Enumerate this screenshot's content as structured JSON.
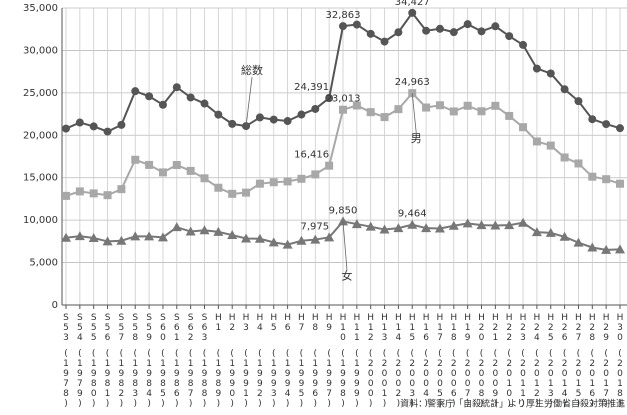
{
  "chart_data": {
    "type": "line",
    "categories": [
      "S53",
      "S54",
      "S55",
      "S56",
      "S57",
      "S58",
      "S59",
      "S60",
      "S61",
      "S62",
      "S63",
      "H1",
      "H2",
      "H3",
      "H4",
      "H5",
      "H6",
      "H7",
      "H8",
      "H9",
      "H10",
      "H11",
      "H12",
      "H13",
      "H14",
      "H15",
      "H16",
      "H17",
      "H18",
      "H19",
      "H20",
      "H21",
      "H22",
      "H23",
      "H24",
      "H25",
      "H26",
      "H27",
      "H28",
      "H29",
      "H30"
    ],
    "years": [
      "(1978)",
      "(1979)",
      "(1980)",
      "(1981)",
      "(1982)",
      "(1983)",
      "(1984)",
      "(1985)",
      "(1986)",
      "(1987)",
      "(1988)",
      "(1989)",
      "(1990)",
      "(1991)",
      "(1992)",
      "(1993)",
      "(1994)",
      "(1995)",
      "(1996)",
      "(1997)",
      "(1998)",
      "(1999)",
      "(2000)",
      "(2001)",
      "(2002)",
      "(2003)",
      "(2004)",
      "(2005)",
      "(2006)",
      "(2007)",
      "(2008)",
      "(2009)",
      "(2010)",
      "(2011)",
      "(2012)",
      "(2013)",
      "(2014)",
      "(2015)",
      "(2016)",
      "(2017)",
      "(2018)"
    ],
    "ylim": [
      0,
      35000
    ],
    "yticks": [
      0,
      {
        "value": 5000,
        "label": "5,000"
      },
      {
        "value": 10000,
        "label": "10,000"
      },
      {
        "value": 15000,
        "label": "15,000"
      },
      {
        "value": 20000,
        "label": "20,000"
      },
      {
        "value": 25000,
        "label": "25,000"
      },
      {
        "value": 30000,
        "label": "30,000"
      },
      {
        "value": 35000,
        "label": "35,000"
      }
    ],
    "grid": true,
    "series": [
      {
        "name": "総数",
        "color": "#555555",
        "marker": "circle",
        "values": [
          20788,
          21503,
          21048,
          20434,
          21228,
          25202,
          24596,
          23599,
          25667,
          24460,
          23742,
          22436,
          21346,
          21084,
          22104,
          21851,
          21679,
          22445,
          23104,
          24391,
          32863,
          33048,
          31957,
          31042,
          32143,
          34427,
          32325,
          32552,
          32155,
          33093,
          32249,
          32845,
          31690,
          30651,
          27858,
          27283,
          25427,
          24025,
          21897,
          21321,
          20840
        ],
        "value_labels": [
          null,
          null,
          null,
          null,
          null,
          null,
          null,
          null,
          null,
          null,
          null,
          null,
          null,
          null,
          null,
          null,
          null,
          null,
          null,
          "24,391",
          "32,863",
          null,
          null,
          null,
          null,
          "34,427",
          null,
          null,
          null,
          null,
          null,
          null,
          null,
          null,
          null,
          null,
          null,
          null,
          null,
          null,
          null
        ]
      },
      {
        "name": "男",
        "color": "#a8a8a8",
        "marker": "square",
        "values": [
          12859,
          13386,
          13155,
          12942,
          13654,
          17116,
          16508,
          15624,
          16497,
          15802,
          14934,
          13818,
          13102,
          13242,
          14296,
          14468,
          14560,
          14874,
          15393,
          16416,
          23013,
          23512,
          22727,
          22144,
          23080,
          24963,
          23272,
          23540,
          22813,
          23478,
          22831,
          23472,
          22283,
          20955,
          19273,
          18787,
          17386,
          16681,
          15121,
          14826,
          14290
        ],
        "value_labels": [
          null,
          null,
          null,
          null,
          null,
          null,
          null,
          null,
          null,
          null,
          null,
          null,
          null,
          null,
          null,
          null,
          null,
          null,
          null,
          "16,416",
          "23,013",
          null,
          null,
          null,
          null,
          "24,963",
          null,
          null,
          null,
          null,
          null,
          null,
          null,
          null,
          null,
          null,
          null,
          null,
          null,
          null,
          null
        ]
      },
      {
        "name": "女",
        "color": "#777777",
        "marker": "triangle",
        "values": [
          7929,
          8117,
          7893,
          7492,
          7574,
          8086,
          8088,
          7975,
          9170,
          8658,
          8808,
          8618,
          8244,
          7842,
          7808,
          7383,
          7119,
          7571,
          7711,
          7975,
          9850,
          9536,
          9230,
          8898,
          9063,
          9464,
          9053,
          9012,
          9342,
          9615,
          9418,
          9373,
          9407,
          9696,
          8585,
          8496,
          8041,
          7344,
          6776,
          6495,
          6550
        ],
        "value_labels": [
          null,
          null,
          null,
          null,
          null,
          null,
          null,
          null,
          null,
          null,
          null,
          null,
          null,
          null,
          null,
          null,
          null,
          null,
          null,
          "7,975",
          "9,850",
          null,
          null,
          null,
          null,
          "9,464",
          null,
          null,
          null,
          null,
          null,
          null,
          null,
          null,
          null,
          null,
          null,
          null,
          null,
          null,
          null
        ]
      }
    ],
    "source": "資料：警察庁「自殺統計」より厚生労働省自殺対策推進"
  }
}
